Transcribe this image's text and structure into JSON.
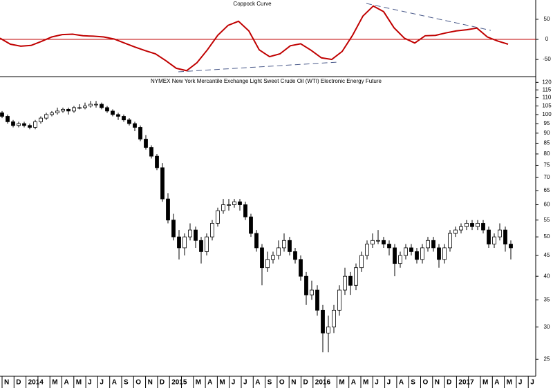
{
  "chart_data": [
    {
      "type": "line",
      "title": "Coppock Curve",
      "color": "#c00000",
      "values": [
        3,
        -12,
        -17,
        -15,
        -5,
        6,
        12,
        13,
        9,
        8,
        6,
        1,
        -9,
        -19,
        -28,
        -36,
        -53,
        -72,
        -78,
        -58,
        -26,
        10,
        35,
        45,
        21,
        -26,
        -43,
        -36,
        -16,
        -11,
        -27,
        -46,
        -50,
        -30,
        10,
        58,
        83,
        69,
        29,
        3,
        -9,
        9,
        10,
        16,
        21,
        24,
        28,
        6,
        -4,
        -12
      ],
      "ylim": [
        -91,
        98
      ],
      "yticks": [
        50,
        0,
        -50
      ],
      "hline": 0,
      "hline_color": "#c00000"
    },
    {
      "type": "candlestick",
      "title": "NYMEX New York Mercantile Exchange Light Sweet Crude Oil (WTI) Electronic Energy Future",
      "log_scale": true,
      "up_color": "#ffffff",
      "down_color": "#000000",
      "ohlc": [
        [
          101,
          102,
          98,
          99
        ],
        [
          99,
          100,
          95,
          96
        ],
        [
          96,
          97,
          93,
          94
        ],
        [
          94,
          96,
          93,
          95
        ],
        [
          95,
          96,
          93,
          94
        ],
        [
          94,
          95,
          92,
          93
        ],
        [
          93,
          97,
          92,
          96
        ],
        [
          96,
          99,
          95,
          98
        ],
        [
          98,
          101,
          97,
          100
        ],
        [
          100,
          102,
          99,
          101
        ],
        [
          101,
          104,
          100,
          102
        ],
        [
          102,
          104,
          101,
          103
        ],
        [
          103,
          104,
          100,
          102
        ],
        [
          102,
          105,
          101,
          104
        ],
        [
          104,
          106,
          103,
          104
        ],
        [
          104,
          107,
          103,
          105
        ],
        [
          105,
          108,
          104,
          106
        ],
        [
          106,
          108,
          104,
          106
        ],
        [
          106,
          107,
          103,
          104
        ],
        [
          104,
          105,
          101,
          102
        ],
        [
          102,
          103,
          99,
          100
        ],
        [
          100,
          101,
          97,
          99
        ],
        [
          99,
          100,
          96,
          97
        ],
        [
          97,
          98,
          94,
          95
        ],
        [
          95,
          96,
          91,
          93
        ],
        [
          93,
          94,
          86,
          87
        ],
        [
          87,
          89,
          82,
          83
        ],
        [
          83,
          84,
          78,
          79
        ],
        [
          79,
          80,
          73,
          74
        ],
        [
          74,
          76,
          61,
          62
        ],
        [
          62,
          64,
          54,
          55
        ],
        [
          55,
          57,
          49,
          50
        ],
        [
          50,
          52,
          44,
          47
        ],
        [
          47,
          51,
          45,
          50
        ],
        [
          50,
          54,
          49,
          52
        ],
        [
          52,
          53,
          47,
          49
        ],
        [
          49,
          50,
          43,
          46
        ],
        [
          46,
          51,
          45,
          50
        ],
        [
          50,
          55,
          49,
          54
        ],
        [
          54,
          59,
          53,
          58
        ],
        [
          58,
          62,
          57,
          60
        ],
        [
          60,
          62,
          58,
          60
        ],
        [
          60,
          62,
          59,
          61
        ],
        [
          61,
          62,
          58,
          60
        ],
        [
          60,
          61,
          55,
          56
        ],
        [
          56,
          57,
          50,
          51
        ],
        [
          51,
          52,
          46,
          47
        ],
        [
          47,
          48,
          38,
          42
        ],
        [
          42,
          46,
          41,
          44
        ],
        [
          44,
          46,
          43,
          45
        ],
        [
          45,
          49,
          44,
          47
        ],
        [
          47,
          51,
          46,
          49
        ],
        [
          49,
          50,
          45,
          46
        ],
        [
          46,
          47,
          43,
          44
        ],
        [
          44,
          45,
          39,
          40
        ],
        [
          40,
          41,
          34,
          36
        ],
        [
          36,
          39,
          35,
          37
        ],
        [
          37,
          38,
          32,
          33
        ],
        [
          33,
          34,
          26,
          29
        ],
        [
          29,
          32,
          26,
          30
        ],
        [
          30,
          34,
          29,
          33
        ],
        [
          33,
          38,
          32,
          37
        ],
        [
          37,
          42,
          36,
          40
        ],
        [
          40,
          41,
          36,
          38
        ],
        [
          38,
          43,
          37,
          42
        ],
        [
          42,
          46,
          41,
          45
        ],
        [
          45,
          49,
          44,
          48
        ],
        [
          48,
          51,
          47,
          49
        ],
        [
          49,
          52,
          48,
          49
        ],
        [
          49,
          50,
          47,
          48
        ],
        [
          48,
          49,
          45,
          47
        ],
        [
          47,
          48,
          40,
          43
        ],
        [
          43,
          46,
          42,
          45
        ],
        [
          45,
          48,
          44,
          47
        ],
        [
          47,
          48,
          45,
          46
        ],
        [
          46,
          47,
          43,
          44
        ],
        [
          44,
          48,
          43,
          47
        ],
        [
          47,
          50,
          46,
          49
        ],
        [
          49,
          50,
          46,
          47
        ],
        [
          47,
          48,
          42,
          44
        ],
        [
          44,
          48,
          43,
          47
        ],
        [
          47,
          52,
          46,
          51
        ],
        [
          51,
          53,
          50,
          52
        ],
        [
          52,
          54,
          51,
          53
        ],
        [
          53,
          55,
          52,
          54
        ],
        [
          54,
          55,
          52,
          53
        ],
        [
          53,
          55,
          52,
          54
        ],
        [
          54,
          55,
          51,
          52
        ],
        [
          52,
          53,
          47,
          48
        ],
        [
          48,
          51,
          47,
          50
        ],
        [
          50,
          54,
          49,
          52
        ],
        [
          52,
          53,
          46,
          48
        ],
        [
          48,
          49,
          44,
          47
        ]
      ],
      "ylim": [
        22.7,
        123
      ],
      "yticks": [
        120,
        115,
        110,
        105,
        100,
        95,
        90,
        85,
        80,
        75,
        70,
        65,
        60,
        55,
        50,
        45,
        40,
        35,
        30,
        25
      ],
      "categories": [
        "N",
        "D",
        "2014",
        null,
        "M",
        "A",
        "M",
        "J",
        "J",
        "A",
        "S",
        "O",
        "N",
        "D",
        "2015",
        null,
        "M",
        "A",
        "M",
        "J",
        "J",
        "A",
        "S",
        "O",
        "N",
        "D",
        "2016",
        null,
        "M",
        "A",
        "M",
        "J",
        "J",
        "A",
        "S",
        "O",
        "N",
        "D",
        "2017",
        null,
        "M",
        "A",
        "M",
        "J",
        "J"
      ]
    }
  ]
}
